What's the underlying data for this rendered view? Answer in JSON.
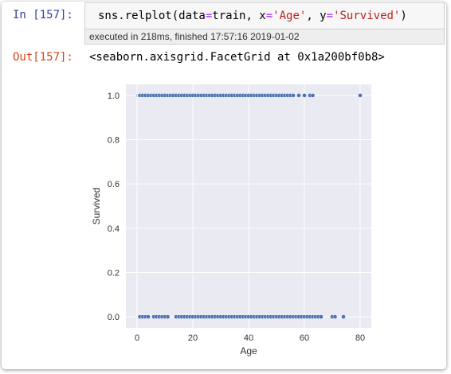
{
  "input": {
    "prompt": "In [157]:",
    "code_fn": "sns.relplot(data",
    "code_eq1": "=",
    "code_mid1": "train, x",
    "code_eq2": "=",
    "code_str1": "'Age'",
    "code_mid2": ", y",
    "code_eq3": "=",
    "code_str2": "'Survived'",
    "code_close": ")"
  },
  "execution": {
    "info": "executed in 218ms, finished 17:57:16 2019-01-02"
  },
  "output": {
    "prompt": "Out[157]:",
    "text": "<seaborn.axisgrid.FacetGrid at 0x1a200bf0b8>"
  },
  "chart_data": {
    "type": "scatter",
    "xlabel": "Age",
    "ylabel": "Survived",
    "xlim": [
      -4,
      84
    ],
    "ylim": [
      -0.05,
      1.05
    ],
    "xticks": [
      0,
      20,
      40,
      60,
      80
    ],
    "xtick_labels": [
      "0",
      "20",
      "40",
      "60",
      "80"
    ],
    "yticks": [
      0.0,
      0.2,
      0.4,
      0.6,
      0.8,
      1.0
    ],
    "ytick_labels": [
      "0.0",
      "0.2",
      "0.4",
      "0.6",
      "0.8",
      "1.0"
    ],
    "grid": true,
    "background": "#eaeaf2",
    "marker_color": "#4c72b0",
    "points": [
      [
        0.42,
        1
      ],
      [
        0.67,
        1
      ],
      [
        0.75,
        1
      ],
      [
        0.83,
        1
      ],
      [
        0.92,
        1
      ],
      [
        1,
        1
      ],
      [
        2,
        1
      ],
      [
        3,
        1
      ],
      [
        4,
        1
      ],
      [
        5,
        1
      ],
      [
        6,
        1
      ],
      [
        7,
        1
      ],
      [
        8,
        1
      ],
      [
        9,
        1
      ],
      [
        10,
        1
      ],
      [
        11,
        1
      ],
      [
        12,
        1
      ],
      [
        13,
        1
      ],
      [
        14,
        1
      ],
      [
        15,
        1
      ],
      [
        16,
        1
      ],
      [
        17,
        1
      ],
      [
        18,
        1
      ],
      [
        19,
        1
      ],
      [
        20,
        1
      ],
      [
        21,
        1
      ],
      [
        22,
        1
      ],
      [
        23,
        1
      ],
      [
        24,
        1
      ],
      [
        25,
        1
      ],
      [
        26,
        1
      ],
      [
        27,
        1
      ],
      [
        28,
        1
      ],
      [
        29,
        1
      ],
      [
        30,
        1
      ],
      [
        31,
        1
      ],
      [
        32,
        1
      ],
      [
        33,
        1
      ],
      [
        34,
        1
      ],
      [
        35,
        1
      ],
      [
        36,
        1
      ],
      [
        37,
        1
      ],
      [
        38,
        1
      ],
      [
        39,
        1
      ],
      [
        40,
        1
      ],
      [
        41,
        1
      ],
      [
        42,
        1
      ],
      [
        43,
        1
      ],
      [
        44,
        1
      ],
      [
        45,
        1
      ],
      [
        46,
        1
      ],
      [
        47,
        1
      ],
      [
        48,
        1
      ],
      [
        49,
        1
      ],
      [
        50,
        1
      ],
      [
        51,
        1
      ],
      [
        52,
        1
      ],
      [
        53,
        1
      ],
      [
        54,
        1
      ],
      [
        55,
        1
      ],
      [
        56,
        1
      ],
      [
        58,
        1
      ],
      [
        60,
        1
      ],
      [
        62,
        1
      ],
      [
        63,
        1
      ],
      [
        80,
        1
      ],
      [
        1,
        0
      ],
      [
        2,
        0
      ],
      [
        3,
        0
      ],
      [
        4,
        0
      ],
      [
        6,
        0
      ],
      [
        7,
        0
      ],
      [
        8,
        0
      ],
      [
        9,
        0
      ],
      [
        10,
        0
      ],
      [
        11,
        0
      ],
      [
        14,
        0
      ],
      [
        15,
        0
      ],
      [
        16,
        0
      ],
      [
        17,
        0
      ],
      [
        18,
        0
      ],
      [
        19,
        0
      ],
      [
        20,
        0
      ],
      [
        21,
        0
      ],
      [
        22,
        0
      ],
      [
        23,
        0
      ],
      [
        24,
        0
      ],
      [
        25,
        0
      ],
      [
        26,
        0
      ],
      [
        27,
        0
      ],
      [
        28,
        0
      ],
      [
        29,
        0
      ],
      [
        30,
        0
      ],
      [
        31,
        0
      ],
      [
        32,
        0
      ],
      [
        33,
        0
      ],
      [
        34,
        0
      ],
      [
        35,
        0
      ],
      [
        36,
        0
      ],
      [
        37,
        0
      ],
      [
        38,
        0
      ],
      [
        39,
        0
      ],
      [
        40,
        0
      ],
      [
        41,
        0
      ],
      [
        42,
        0
      ],
      [
        43,
        0
      ],
      [
        44,
        0
      ],
      [
        45,
        0
      ],
      [
        46,
        0
      ],
      [
        47,
        0
      ],
      [
        48,
        0
      ],
      [
        49,
        0
      ],
      [
        50,
        0
      ],
      [
        51,
        0
      ],
      [
        52,
        0
      ],
      [
        53,
        0
      ],
      [
        54,
        0
      ],
      [
        55,
        0
      ],
      [
        56,
        0
      ],
      [
        57,
        0
      ],
      [
        58,
        0
      ],
      [
        59,
        0
      ],
      [
        60,
        0
      ],
      [
        61,
        0
      ],
      [
        62,
        0
      ],
      [
        63,
        0
      ],
      [
        64,
        0
      ],
      [
        65,
        0
      ],
      [
        66,
        0
      ],
      [
        70,
        0
      ],
      [
        71,
        0
      ],
      [
        74,
        0
      ]
    ]
  }
}
